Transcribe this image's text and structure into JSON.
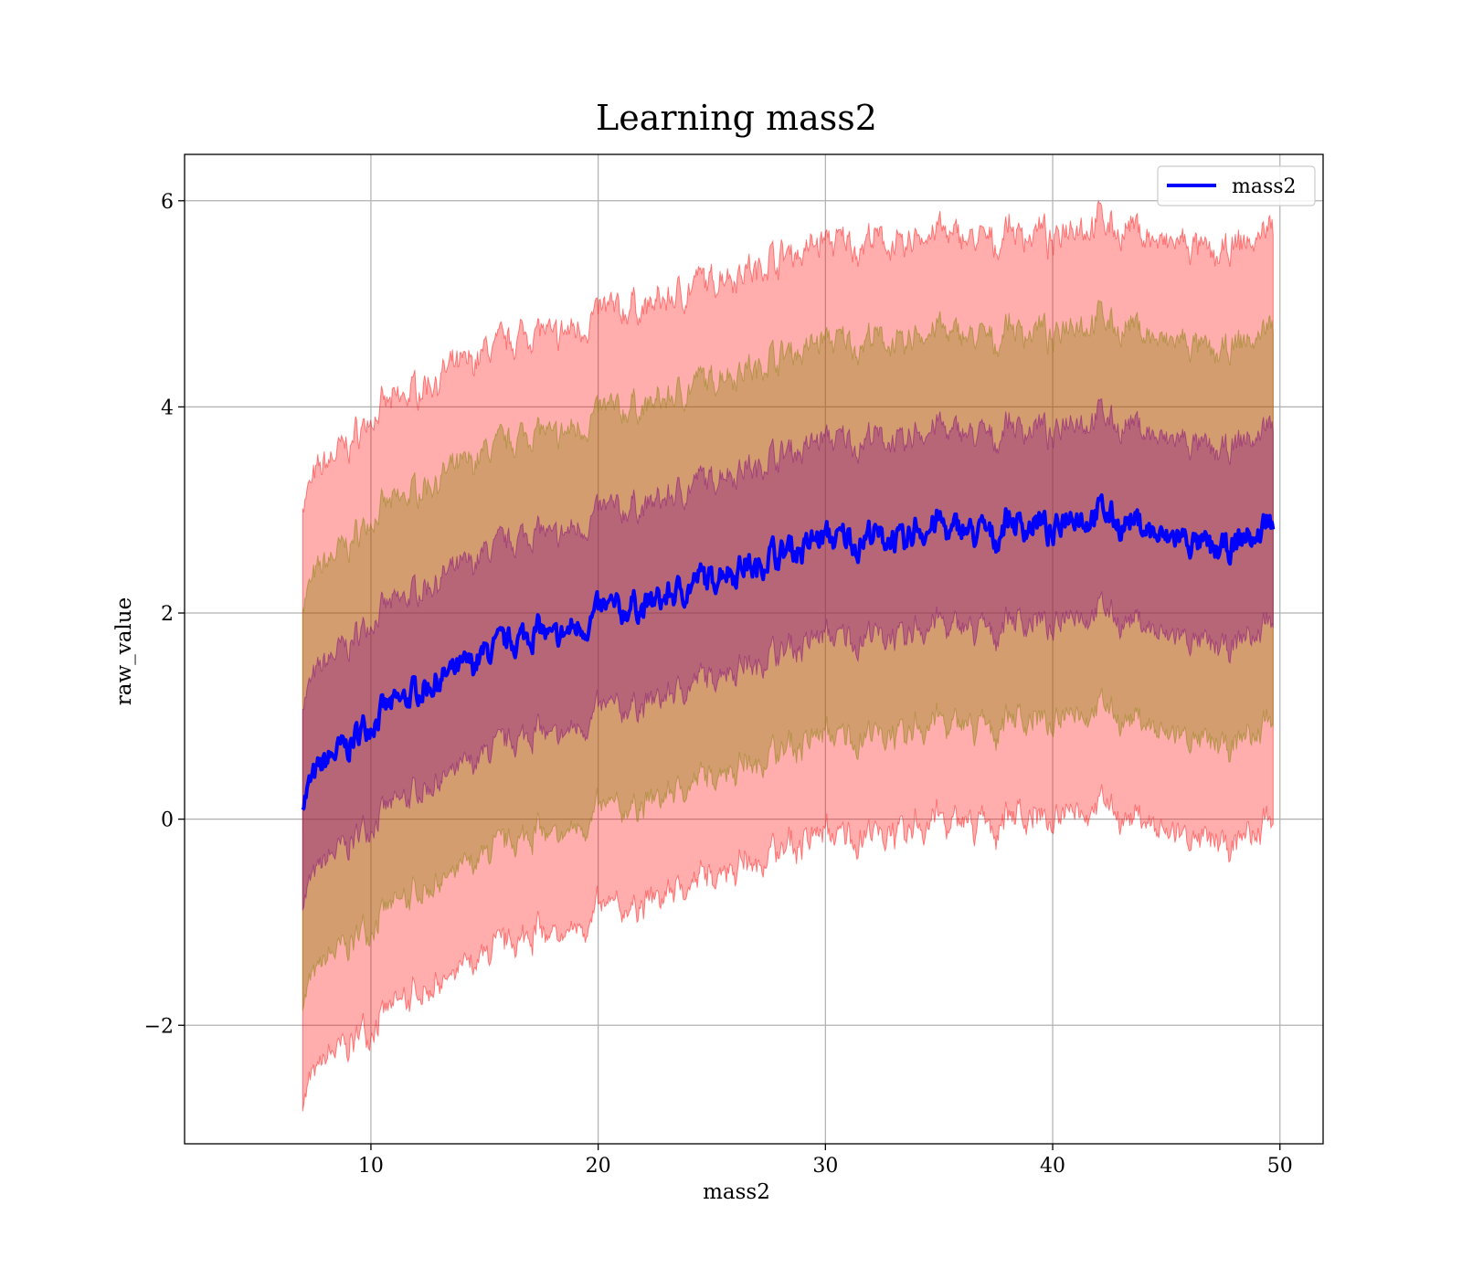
{
  "chart_data": {
    "type": "line",
    "title": "Learning mass2",
    "xlabel": "mass2",
    "ylabel": "raw_value",
    "xlim": [
      1.8,
      51.9
    ],
    "ylim": [
      -3.15,
      6.45
    ],
    "xticks": [
      10,
      20,
      30,
      40,
      50
    ],
    "xtick_labels": [
      "10",
      "20",
      "30",
      "40",
      "50"
    ],
    "yticks": [
      -2,
      0,
      2,
      4,
      6
    ],
    "ytick_labels": [
      "−2",
      "0",
      "2",
      "4",
      "6"
    ],
    "grid": true,
    "legend": "top-right",
    "series": [
      {
        "name": "mass2",
        "color": "#0000ff",
        "x": [
          7,
          7.5,
          8,
          8.5,
          9,
          9.5,
          10,
          10.5,
          11,
          11.5,
          12,
          12.5,
          13,
          13.5,
          14,
          14.5,
          15,
          15.5,
          16,
          16.5,
          17,
          17.5,
          18,
          18.5,
          19,
          19.5,
          20,
          20.5,
          21,
          21.5,
          22,
          22.5,
          23,
          23.5,
          24,
          24.5,
          25,
          25.5,
          26,
          26.5,
          27,
          27.5,
          28,
          28.5,
          29,
          29.5,
          30,
          30.5,
          31,
          31.5,
          32,
          32.5,
          33,
          33.5,
          34,
          34.5,
          35,
          35.5,
          36,
          36.5,
          37,
          37.5,
          38,
          38.5,
          39,
          39.5,
          40,
          40.5,
          41,
          41.5,
          42,
          42.5,
          43,
          43.5,
          44,
          44.5,
          45,
          45.5,
          46,
          46.5,
          47,
          47.5,
          48,
          48.5,
          49,
          49.5,
          49.7
        ],
        "y": [
          0.2,
          0.4,
          0.55,
          0.65,
          0.7,
          0.85,
          0.95,
          1.05,
          1.1,
          1.15,
          1.25,
          1.3,
          1.35,
          1.4,
          1.45,
          1.5,
          1.6,
          1.65,
          1.7,
          1.75,
          1.8,
          1.85,
          1.7,
          1.8,
          1.85,
          1.9,
          2.0,
          2.05,
          2.0,
          2.1,
          2.05,
          2.1,
          2.15,
          2.2,
          2.25,
          2.35,
          2.3,
          2.45,
          2.4,
          2.5,
          2.4,
          2.6,
          2.55,
          2.65,
          2.6,
          2.7,
          2.75,
          2.7,
          2.75,
          2.65,
          2.8,
          2.7,
          2.75,
          2.6,
          2.85,
          2.8,
          2.9,
          2.75,
          2.85,
          2.75,
          2.8,
          2.7,
          2.95,
          2.85,
          2.85,
          2.9,
          2.7,
          2.95,
          3.0,
          2.9,
          3.0,
          2.95,
          2.85,
          2.9,
          2.85,
          2.75,
          2.7,
          2.75,
          2.7,
          2.65,
          2.6,
          2.6,
          2.65,
          2.75,
          2.7,
          2.95,
          2.78
        ]
      }
    ],
    "bands": [
      {
        "sigma": 1,
        "fill": "#800080",
        "opacity": 0.35
      },
      {
        "sigma": 2,
        "fill": "#808000",
        "opacity": 0.35
      },
      {
        "sigma": 3,
        "fill": "#ff0000",
        "opacity": 0.32
      }
    ],
    "sigma": {
      "x": [
        7,
        10,
        15,
        20,
        25,
        30,
        35,
        40,
        45,
        49.7
      ],
      "values": [
        0.96,
        0.98,
        0.98,
        0.97,
        0.96,
        0.96,
        0.95,
        0.94,
        0.95,
        0.96
      ]
    }
  }
}
